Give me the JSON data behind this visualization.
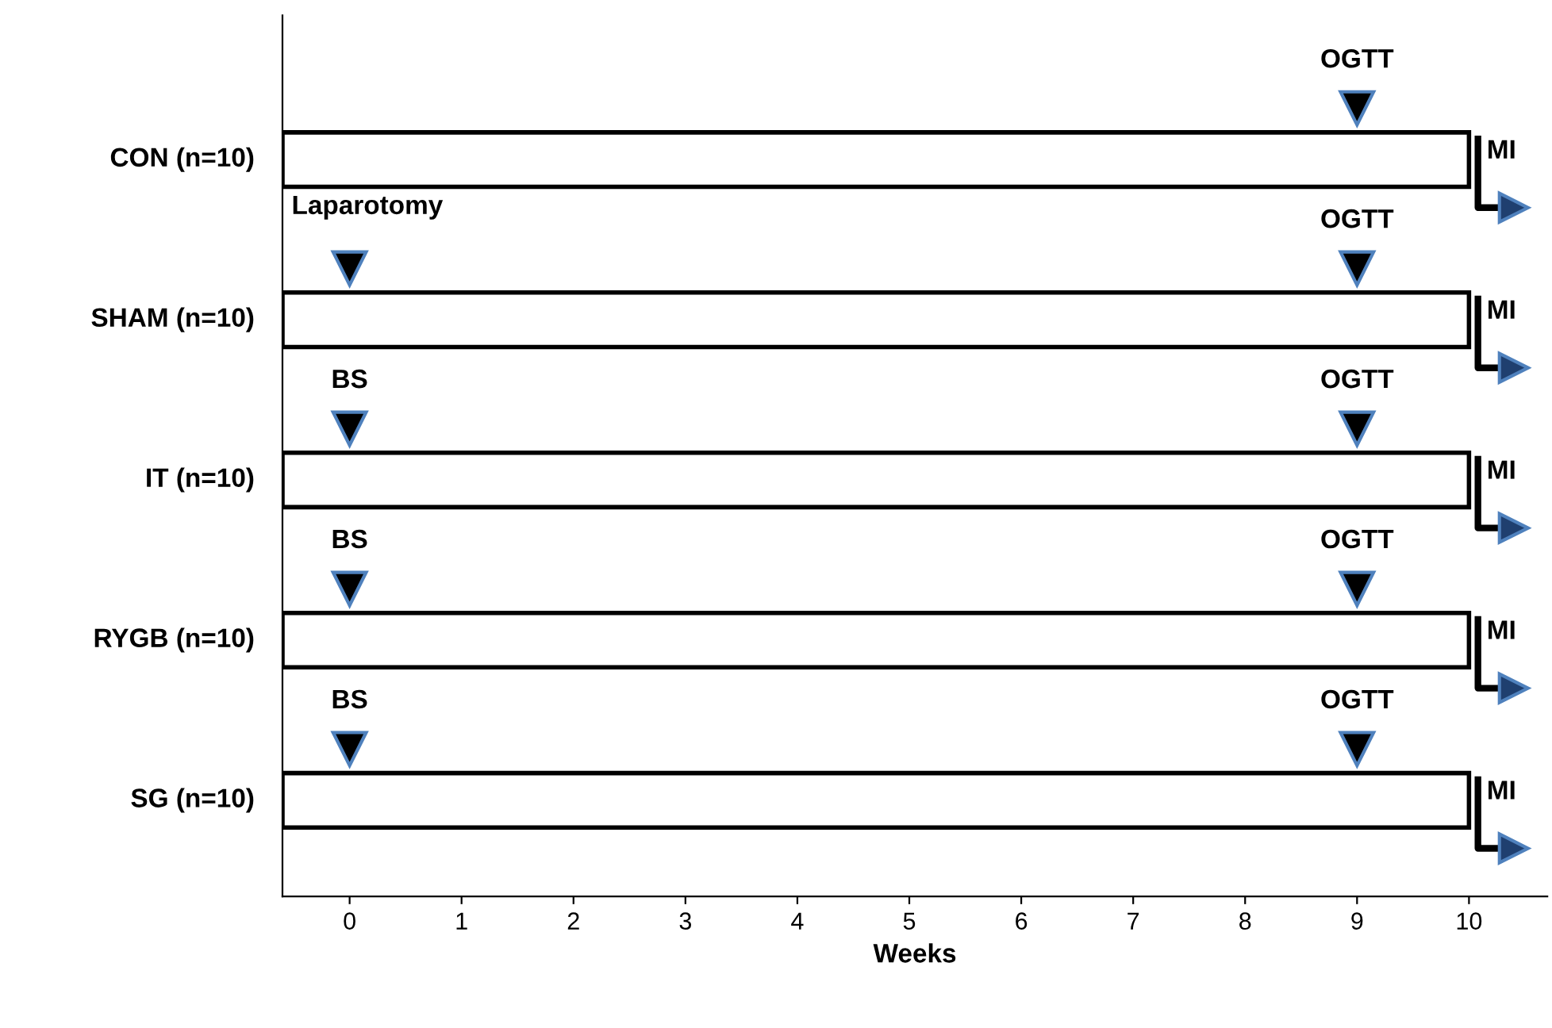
{
  "chart_data": {
    "type": "bar",
    "orientation": "horizontal",
    "categories": [
      "CON (n=10)",
      "SHAM (n=10)",
      "IT (n=10)",
      "RYGB (n=10)",
      "SG (n=10)"
    ],
    "series": [
      {
        "color": "#ffffff",
        "base": [
          -0.6,
          -0.6,
          -0.6,
          -0.6,
          -0.6
        ],
        "values": [
          10.6,
          10.6,
          10.6,
          10.6,
          10.6
        ]
      },
      {
        "type": "scatter",
        "marker": "triangle",
        "color": "#000000",
        "values": [
          9,
          9,
          9,
          9,
          9
        ],
        "value_labels": [
          "OGTT",
          "OGTT",
          "OGTT",
          "OGTT",
          "OGTT"
        ]
      },
      {
        "type": "scatter",
        "marker": "triangle",
        "color": "#000000",
        "values": [
          null,
          0,
          0,
          0,
          0
        ],
        "value_labels": [
          null,
          "Laparotomy",
          "BS",
          "BS",
          "BS"
        ]
      },
      {
        "type": "scatter",
        "marker": "triangle",
        "color": "#1f3f6f",
        "values": [
          10.4,
          10.4,
          10.4,
          10.4,
          10.4
        ],
        "value_labels": [
          "MI",
          "MI",
          "MI",
          "MI",
          "MI"
        ]
      }
    ],
    "xlabel": "Weeks",
    "xlim": [
      -0.6,
      10.7
    ],
    "xticks": [
      0,
      1,
      2,
      3,
      4,
      5,
      6,
      7,
      8,
      9,
      10
    ],
    "grid": false,
    "tick_labels": "x"
  }
}
